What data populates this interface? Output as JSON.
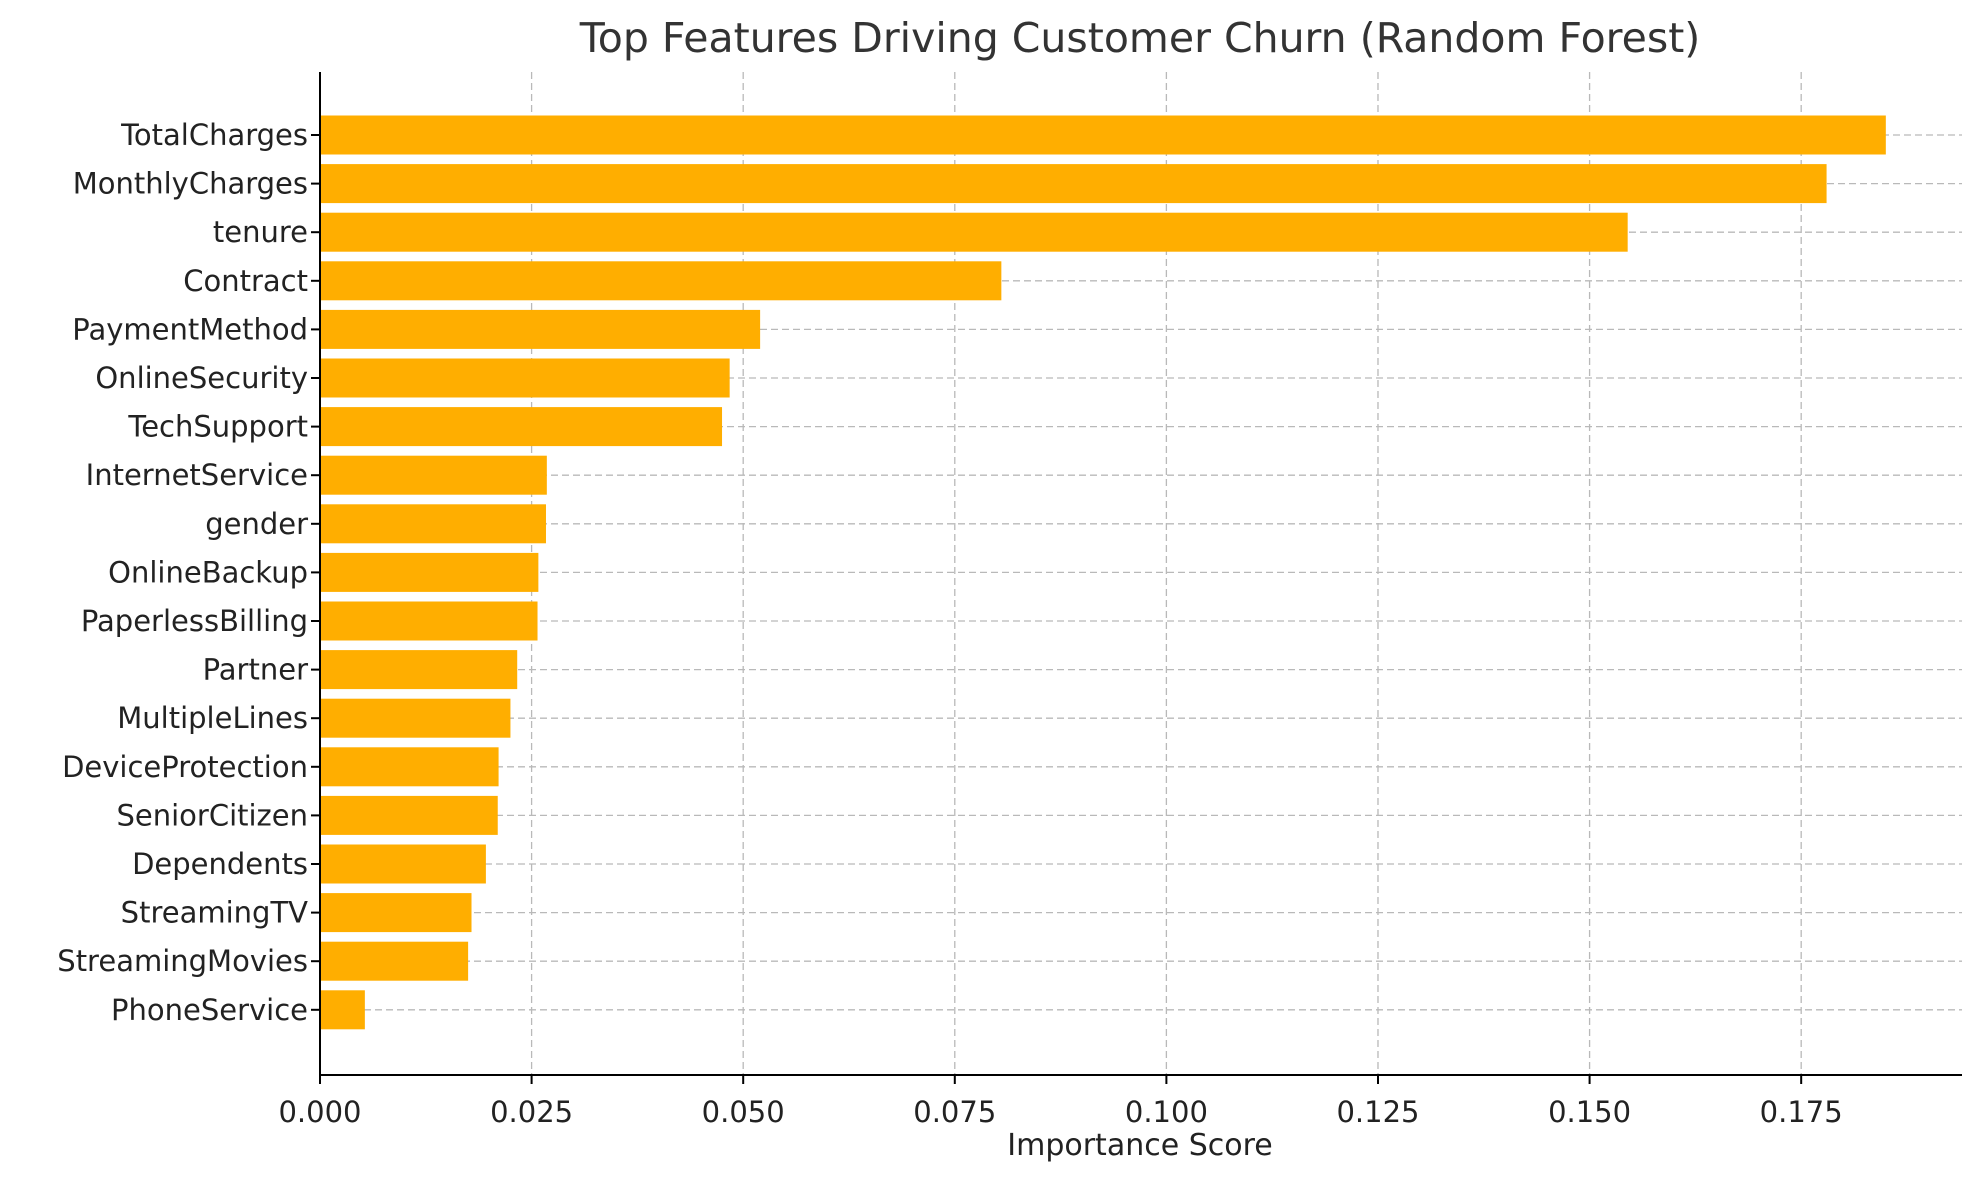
{
  "chart_data": {
    "type": "bar",
    "orientation": "horizontal",
    "title": "Top Features Driving Customer Churn (Random Forest)",
    "xlabel": "Importance Score",
    "ylabel": "",
    "xlim": [
      0,
      0.194
    ],
    "xticks": [
      0,
      0.025,
      0.05,
      0.075,
      0.1,
      0.125,
      0.15,
      0.175
    ],
    "xtick_labels": [
      "0.000",
      "0.025",
      "0.050",
      "0.075",
      "0.100",
      "0.125",
      "0.150",
      "0.175"
    ],
    "grid": true,
    "bar_color": "#FFAE00",
    "categories": [
      "TotalCharges",
      "MonthlyCharges",
      "tenure",
      "Contract",
      "PaymentMethod",
      "OnlineSecurity",
      "TechSupport",
      "InternetService",
      "gender",
      "OnlineBackup",
      "PaperlessBilling",
      "Partner",
      "MultipleLines",
      "DeviceProtection",
      "SeniorCitizen",
      "Dependents",
      "StreamingTV",
      "StreamingMovies",
      "PhoneService"
    ],
    "values": [
      0.185,
      0.178,
      0.1545,
      0.0805,
      0.052,
      0.0484,
      0.0475,
      0.0268,
      0.0267,
      0.0258,
      0.0257,
      0.0233,
      0.0225,
      0.0211,
      0.021,
      0.0196,
      0.0179,
      0.0175,
      0.0053
    ]
  }
}
